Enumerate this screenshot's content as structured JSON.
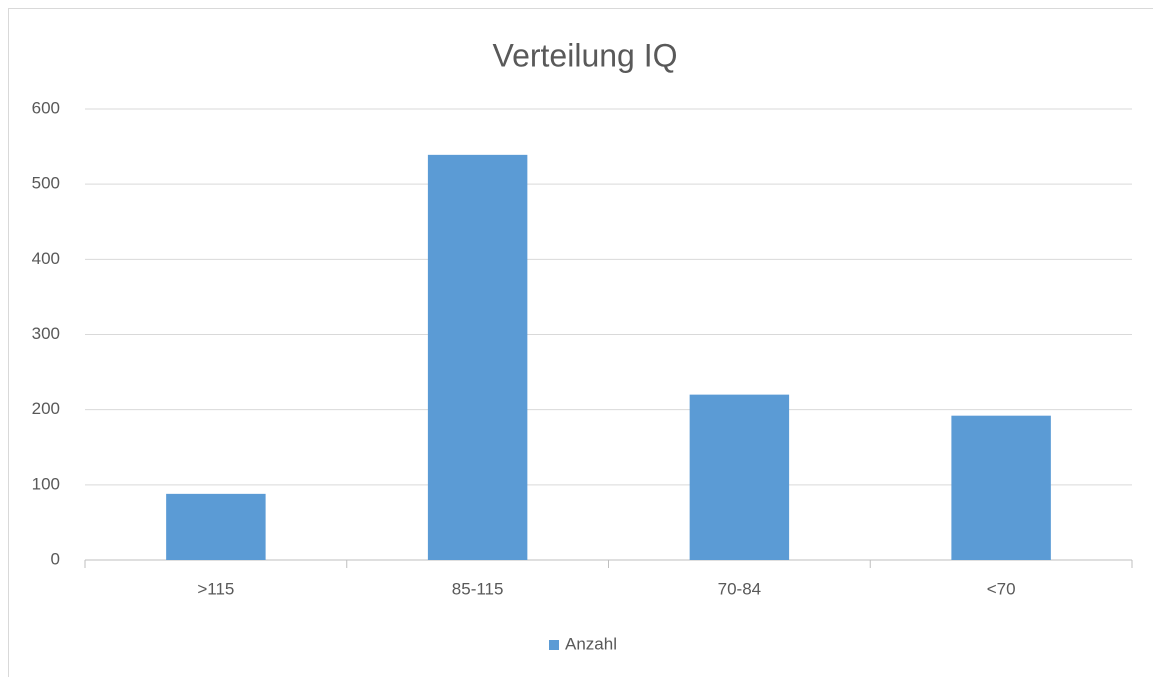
{
  "chart_data": {
    "type": "bar",
    "title": "Verteilung IQ",
    "categories": [
      ">115",
      "85-115",
      "70-84",
      "<70"
    ],
    "series": [
      {
        "name": "Anzahl",
        "color": "#5b9bd5",
        "values": [
          88,
          539,
          220,
          192
        ]
      }
    ],
    "ylim": [
      0,
      600
    ],
    "yticks": [
      0,
      100,
      200,
      300,
      400,
      500,
      600
    ],
    "grid": true,
    "legend": "bottom"
  }
}
